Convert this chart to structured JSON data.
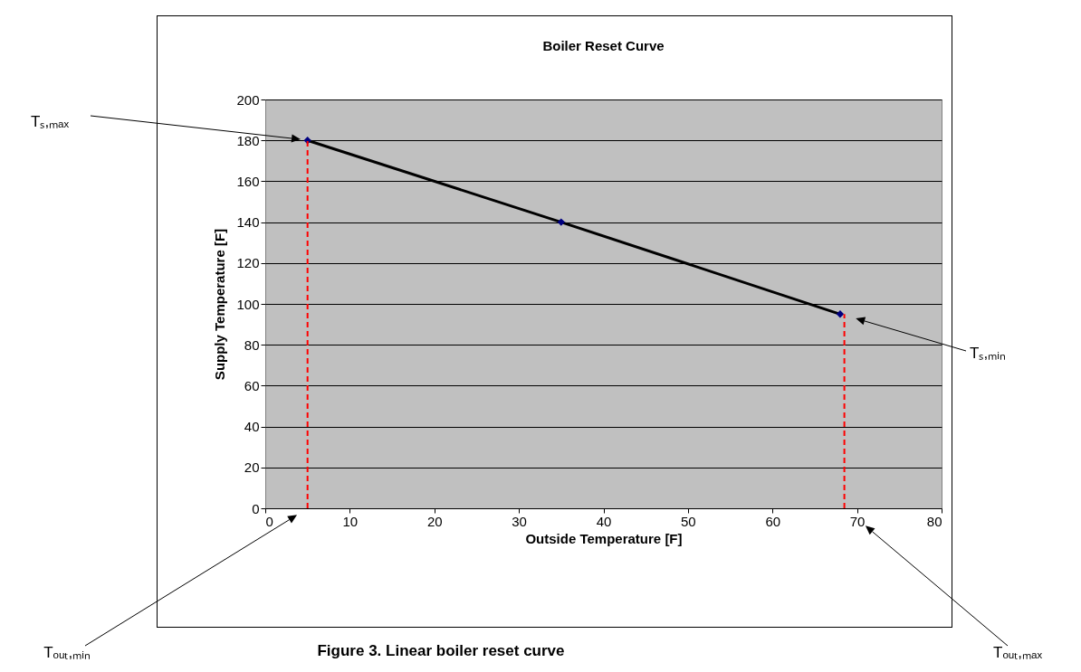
{
  "chart_data": {
    "type": "line",
    "title": "Boiler Reset Curve",
    "xlabel": "Outside Temperature [F]",
    "ylabel": "Supply Temperature [F]",
    "xlim": [
      0,
      80
    ],
    "xticks": [
      0,
      10,
      20,
      30,
      40,
      50,
      60,
      70,
      80
    ],
    "ylim": [
      0,
      200
    ],
    "yticks": [
      0,
      20,
      40,
      60,
      80,
      100,
      120,
      140,
      160,
      180,
      200
    ],
    "grid": "y",
    "series": [
      {
        "type": "line",
        "x": [
          5,
          35,
          68
        ],
        "values": [
          180,
          140,
          95
        ],
        "color": "#000000"
      },
      {
        "type": "scatter",
        "x": [
          5,
          35,
          68
        ],
        "values": [
          180,
          140,
          95
        ],
        "color": "#000080",
        "marker": "diamond"
      },
      {
        "type": "line",
        "x": [
          5,
          5
        ],
        "values": [
          0,
          180
        ],
        "color": "#ff0000",
        "line_style": "dashed"
      },
      {
        "type": "line",
        "x": [
          68.5,
          68.5
        ],
        "values": [
          0,
          95
        ],
        "color": "#ff0000",
        "line_style": "dashed"
      }
    ],
    "annotations": [
      "Tₛ,ₘₐₓ",
      "Tₛ,ₘᵢₙ",
      "Tₒᵤₜ,ₘᵢₙ",
      "Tₒᵤₜ,ₘₐₓ",
      "Figure 3. Linear boiler reset curve"
    ]
  }
}
